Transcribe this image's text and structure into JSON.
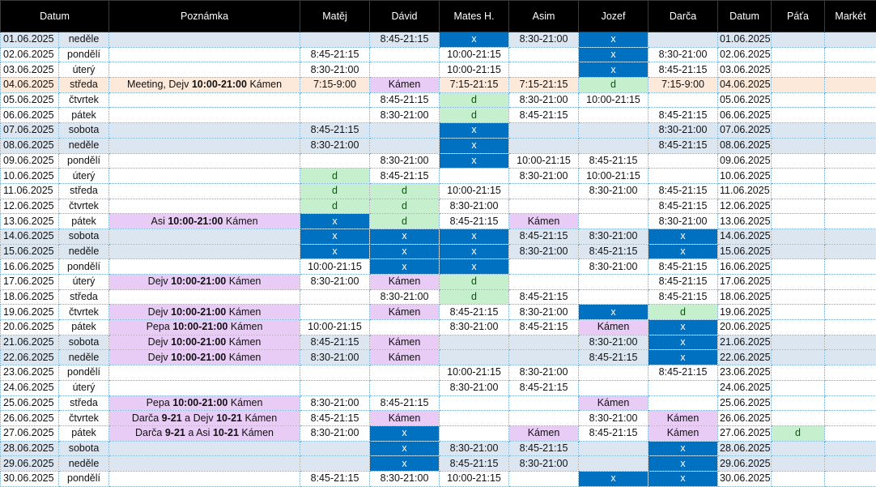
{
  "headers": [
    "Datum",
    "Poznámka",
    "Matěj",
    "Dávid",
    "Mates H.",
    "Asim",
    "Jozef",
    "Darča",
    "Datum",
    "Páťa",
    "Markét"
  ],
  "rows": [
    {
      "date": "01.06.2025",
      "day": "neděle",
      "weekend": true,
      "note": [],
      "noteClass": "",
      "cells": [
        {
          "v": ""
        },
        {
          "v": "8:45-21:15"
        },
        {
          "v": "x",
          "c": "x"
        },
        {
          "v": "8:30-21:00"
        },
        {
          "v": "x",
          "c": "x"
        },
        {
          "v": ""
        },
        {
          "v": "01.06.2025"
        },
        {
          "v": ""
        },
        {
          "v": ""
        }
      ]
    },
    {
      "date": "02.06.2025",
      "day": "pondělí",
      "note": [],
      "noteClass": "",
      "cells": [
        {
          "v": "8:45-21:15"
        },
        {
          "v": ""
        },
        {
          "v": "10:00-21:15"
        },
        {
          "v": ""
        },
        {
          "v": "x",
          "c": "x"
        },
        {
          "v": "8:30-21:00"
        },
        {
          "v": "02.06.2025"
        },
        {
          "v": ""
        },
        {
          "v": ""
        }
      ]
    },
    {
      "date": "03.06.2025",
      "day": "úterý",
      "note": [],
      "noteClass": "",
      "cells": [
        {
          "v": "8:30-21:00"
        },
        {
          "v": ""
        },
        {
          "v": "10:00-21:15"
        },
        {
          "v": ""
        },
        {
          "v": "x",
          "c": "x"
        },
        {
          "v": "8:45-21:15"
        },
        {
          "v": "03.06.2025"
        },
        {
          "v": ""
        },
        {
          "v": ""
        }
      ]
    },
    {
      "date": "04.06.2025",
      "day": "středa",
      "meeting": true,
      "note": [
        {
          "t": "Meeting, Dejv "
        },
        {
          "t": "10:00-21:00",
          "b": true
        },
        {
          "t": " Kámen"
        }
      ],
      "noteClass": "",
      "cells": [
        {
          "v": "7:15-9:00"
        },
        {
          "v": "Kámen",
          "c": "k"
        },
        {
          "v": "7:15-21:15"
        },
        {
          "v": "7:15-21:15"
        },
        {
          "v": "d",
          "c": "d"
        },
        {
          "v": "7:15-9:00"
        },
        {
          "v": "04.06.2025"
        },
        {
          "v": ""
        },
        {
          "v": ""
        }
      ]
    },
    {
      "date": "05.06.2025",
      "day": "čtvrtek",
      "note": [],
      "noteClass": "",
      "cells": [
        {
          "v": ""
        },
        {
          "v": "8:45-21:15"
        },
        {
          "v": "d",
          "c": "d"
        },
        {
          "v": "8:30-21:00"
        },
        {
          "v": "10:00-21:15"
        },
        {
          "v": ""
        },
        {
          "v": "05.06.2025"
        },
        {
          "v": ""
        },
        {
          "v": ""
        }
      ]
    },
    {
      "date": "06.06.2025",
      "day": "pátek",
      "note": [],
      "noteClass": "",
      "cells": [
        {
          "v": ""
        },
        {
          "v": "8:30-21:00"
        },
        {
          "v": "d",
          "c": "d"
        },
        {
          "v": "8:45-21:15"
        },
        {
          "v": ""
        },
        {
          "v": "8:45-21:15"
        },
        {
          "v": "06.06.2025"
        },
        {
          "v": ""
        },
        {
          "v": ""
        }
      ]
    },
    {
      "date": "07.06.2025",
      "day": "sobota",
      "weekend": true,
      "note": [],
      "noteClass": "",
      "cells": [
        {
          "v": "8:45-21:15"
        },
        {
          "v": ""
        },
        {
          "v": "x",
          "c": "x"
        },
        {
          "v": ""
        },
        {
          "v": ""
        },
        {
          "v": "8:30-21:00"
        },
        {
          "v": "07.06.2025"
        },
        {
          "v": ""
        },
        {
          "v": ""
        }
      ]
    },
    {
      "date": "08.06.2025",
      "day": "neděle",
      "weekend": true,
      "note": [],
      "noteClass": "",
      "cells": [
        {
          "v": "8:30-21:00"
        },
        {
          "v": ""
        },
        {
          "v": "x",
          "c": "x"
        },
        {
          "v": ""
        },
        {
          "v": ""
        },
        {
          "v": "8:45-21:15"
        },
        {
          "v": "08.06.2025"
        },
        {
          "v": ""
        },
        {
          "v": ""
        }
      ]
    },
    {
      "date": "09.06.2025",
      "day": "pondělí",
      "note": [],
      "noteClass": "",
      "cells": [
        {
          "v": ""
        },
        {
          "v": "8:30-21:00"
        },
        {
          "v": "x",
          "c": "x"
        },
        {
          "v": "10:00-21:15"
        },
        {
          "v": "8:45-21:15"
        },
        {
          "v": ""
        },
        {
          "v": "09.06.2025"
        },
        {
          "v": ""
        },
        {
          "v": ""
        }
      ]
    },
    {
      "date": "10.06.2025",
      "day": "úterý",
      "note": [],
      "noteClass": "",
      "cells": [
        {
          "v": "d",
          "c": "d"
        },
        {
          "v": "8:45-21:15"
        },
        {
          "v": ""
        },
        {
          "v": "8:30-21:00"
        },
        {
          "v": "10:00-21:15"
        },
        {
          "v": ""
        },
        {
          "v": "10.06.2025"
        },
        {
          "v": ""
        },
        {
          "v": ""
        }
      ]
    },
    {
      "date": "11.06.2025",
      "day": "středa",
      "note": [],
      "noteClass": "",
      "cells": [
        {
          "v": "d",
          "c": "d"
        },
        {
          "v": "d",
          "c": "d"
        },
        {
          "v": "10:00-21:15"
        },
        {
          "v": ""
        },
        {
          "v": "8:30-21:00"
        },
        {
          "v": "8:45-21:15"
        },
        {
          "v": "11.06.2025"
        },
        {
          "v": ""
        },
        {
          "v": ""
        }
      ]
    },
    {
      "date": "12.06.2025",
      "day": "čtvrtek",
      "note": [],
      "noteClass": "",
      "cells": [
        {
          "v": "d",
          "c": "d"
        },
        {
          "v": "d",
          "c": "d"
        },
        {
          "v": "8:30-21:00"
        },
        {
          "v": ""
        },
        {
          "v": ""
        },
        {
          "v": "8:45-21:15"
        },
        {
          "v": "12.06.2025"
        },
        {
          "v": ""
        },
        {
          "v": ""
        }
      ]
    },
    {
      "date": "13.06.2025",
      "day": "pátek",
      "note": [
        {
          "t": "Asi "
        },
        {
          "t": "10:00-21:00",
          "b": true
        },
        {
          "t": " Kámen"
        }
      ],
      "noteClass": "k",
      "cells": [
        {
          "v": "x",
          "c": "x"
        },
        {
          "v": "d",
          "c": "d"
        },
        {
          "v": "8:45-21:15"
        },
        {
          "v": "Kámen",
          "c": "k"
        },
        {
          "v": ""
        },
        {
          "v": "8:30-21:00"
        },
        {
          "v": "13.06.2025"
        },
        {
          "v": ""
        },
        {
          "v": ""
        }
      ]
    },
    {
      "date": "14.06.2025",
      "day": "sobota",
      "weekend": true,
      "note": [],
      "noteClass": "",
      "cells": [
        {
          "v": "x",
          "c": "x"
        },
        {
          "v": "x",
          "c": "x"
        },
        {
          "v": "x",
          "c": "x"
        },
        {
          "v": "8:45-21:15"
        },
        {
          "v": "8:30-21:00"
        },
        {
          "v": "x",
          "c": "x"
        },
        {
          "v": "14.06.2025"
        },
        {
          "v": ""
        },
        {
          "v": ""
        }
      ]
    },
    {
      "date": "15.06.2025",
      "day": "neděle",
      "weekend": true,
      "note": [],
      "noteClass": "",
      "cells": [
        {
          "v": "x",
          "c": "x"
        },
        {
          "v": "x",
          "c": "x"
        },
        {
          "v": "x",
          "c": "x"
        },
        {
          "v": "8:30-21:00"
        },
        {
          "v": "8:45-21:15"
        },
        {
          "v": "x",
          "c": "x"
        },
        {
          "v": "15.06.2025"
        },
        {
          "v": ""
        },
        {
          "v": ""
        }
      ]
    },
    {
      "date": "16.06.2025",
      "day": "pondělí",
      "note": [],
      "noteClass": "",
      "cells": [
        {
          "v": "10:00-21:15"
        },
        {
          "v": "x",
          "c": "x"
        },
        {
          "v": "x",
          "c": "x"
        },
        {
          "v": ""
        },
        {
          "v": "8:30-21:00"
        },
        {
          "v": "8:45-21:15"
        },
        {
          "v": "16.06.2025"
        },
        {
          "v": ""
        },
        {
          "v": ""
        }
      ]
    },
    {
      "date": "17.06.2025",
      "day": "úterý",
      "note": [
        {
          "t": "Dejv "
        },
        {
          "t": "10:00-21:00",
          "b": true
        },
        {
          "t": " Kámen"
        }
      ],
      "noteClass": "k",
      "cells": [
        {
          "v": "8:30-21:00"
        },
        {
          "v": "Kámen",
          "c": "k"
        },
        {
          "v": "d",
          "c": "d"
        },
        {
          "v": ""
        },
        {
          "v": ""
        },
        {
          "v": "8:45-21:15"
        },
        {
          "v": "17.06.2025"
        },
        {
          "v": ""
        },
        {
          "v": ""
        }
      ]
    },
    {
      "date": "18.06.2025",
      "day": "středa",
      "note": [],
      "noteClass": "",
      "cells": [
        {
          "v": ""
        },
        {
          "v": "8:30-21:00"
        },
        {
          "v": "d",
          "c": "d"
        },
        {
          "v": "8:45-21:15"
        },
        {
          "v": ""
        },
        {
          "v": "8:45-21:15"
        },
        {
          "v": "18.06.2025"
        },
        {
          "v": ""
        },
        {
          "v": ""
        }
      ]
    },
    {
      "date": "19.06.2025",
      "day": "čtvrtek",
      "note": [
        {
          "t": "Dejv "
        },
        {
          "t": "10:00-21:00",
          "b": true
        },
        {
          "t": " Kámen"
        }
      ],
      "noteClass": "k",
      "cells": [
        {
          "v": ""
        },
        {
          "v": "Kámen",
          "c": "k"
        },
        {
          "v": "8:45-21:15"
        },
        {
          "v": "8:30-21:00"
        },
        {
          "v": "x",
          "c": "x"
        },
        {
          "v": "d",
          "c": "d"
        },
        {
          "v": "19.06.2025"
        },
        {
          "v": ""
        },
        {
          "v": ""
        }
      ]
    },
    {
      "date": "20.06.2025",
      "day": "pátek",
      "note": [
        {
          "t": "Pepa "
        },
        {
          "t": "10:00-21:00",
          "b": true
        },
        {
          "t": " Kámen"
        }
      ],
      "noteClass": "k",
      "cells": [
        {
          "v": "10:00-21:15"
        },
        {
          "v": ""
        },
        {
          "v": "8:30-21:00"
        },
        {
          "v": "8:45-21:15"
        },
        {
          "v": "Kámen",
          "c": "k"
        },
        {
          "v": "x",
          "c": "x"
        },
        {
          "v": "20.06.2025"
        },
        {
          "v": ""
        },
        {
          "v": ""
        }
      ]
    },
    {
      "date": "21.06.2025",
      "day": "sobota",
      "weekend": true,
      "note": [
        {
          "t": "Dejv "
        },
        {
          "t": "10:00-21:00",
          "b": true
        },
        {
          "t": " Kámen"
        }
      ],
      "noteClass": "k",
      "cells": [
        {
          "v": "8:45-21:15"
        },
        {
          "v": "Kámen",
          "c": "k"
        },
        {
          "v": ""
        },
        {
          "v": ""
        },
        {
          "v": "8:30-21:00"
        },
        {
          "v": "x",
          "c": "x"
        },
        {
          "v": "21.06.2025"
        },
        {
          "v": ""
        },
        {
          "v": ""
        }
      ]
    },
    {
      "date": "22.06.2025",
      "day": "neděle",
      "weekend": true,
      "note": [
        {
          "t": "Dejv "
        },
        {
          "t": "10:00-21:00",
          "b": true
        },
        {
          "t": " Kámen"
        }
      ],
      "noteClass": "k",
      "cells": [
        {
          "v": "8:30-21:00"
        },
        {
          "v": "Kámen",
          "c": "k"
        },
        {
          "v": ""
        },
        {
          "v": ""
        },
        {
          "v": "8:45-21:15"
        },
        {
          "v": "x",
          "c": "x"
        },
        {
          "v": "22.06.2025"
        },
        {
          "v": ""
        },
        {
          "v": ""
        }
      ]
    },
    {
      "date": "23.06.2025",
      "day": "pondělí",
      "note": [],
      "noteClass": "",
      "cells": [
        {
          "v": ""
        },
        {
          "v": ""
        },
        {
          "v": "10:00-21:15"
        },
        {
          "v": "8:30-21:00"
        },
        {
          "v": ""
        },
        {
          "v": "8:45-21:15"
        },
        {
          "v": "23.06.2025"
        },
        {
          "v": ""
        },
        {
          "v": ""
        }
      ]
    },
    {
      "date": "24.06.2025",
      "day": "úterý",
      "note": [],
      "noteClass": "",
      "cells": [
        {
          "v": ""
        },
        {
          "v": ""
        },
        {
          "v": "8:30-21:00"
        },
        {
          "v": "8:45-21:15"
        },
        {
          "v": ""
        },
        {
          "v": ""
        },
        {
          "v": "24.06.2025"
        },
        {
          "v": ""
        },
        {
          "v": ""
        }
      ]
    },
    {
      "date": "25.06.2025",
      "day": "středa",
      "note": [
        {
          "t": "Pepa "
        },
        {
          "t": "10:00-21:00",
          "b": true
        },
        {
          "t": " Kámen"
        }
      ],
      "noteClass": "k",
      "cells": [
        {
          "v": "8:30-21:00"
        },
        {
          "v": "8:45-21:15"
        },
        {
          "v": ""
        },
        {
          "v": ""
        },
        {
          "v": "Kámen",
          "c": "k"
        },
        {
          "v": ""
        },
        {
          "v": "25.06.2025"
        },
        {
          "v": ""
        },
        {
          "v": ""
        }
      ]
    },
    {
      "date": "26.06.2025",
      "day": "čtvrtek",
      "note": [
        {
          "t": "Darča "
        },
        {
          "t": "9-21",
          "b": true
        },
        {
          "t": " a Dejv "
        },
        {
          "t": "10-21",
          "b": true
        },
        {
          "t": " Kámen"
        }
      ],
      "noteClass": "k",
      "cells": [
        {
          "v": "8:45-21:15"
        },
        {
          "v": "Kámen",
          "c": "k"
        },
        {
          "v": ""
        },
        {
          "v": ""
        },
        {
          "v": "8:30-21:00"
        },
        {
          "v": "Kámen",
          "c": "k"
        },
        {
          "v": "26.06.2025"
        },
        {
          "v": ""
        },
        {
          "v": ""
        }
      ]
    },
    {
      "date": "27.06.2025",
      "day": "pátek",
      "note": [
        {
          "t": "Darča "
        },
        {
          "t": "9-21",
          "b": true
        },
        {
          "t": " a Asi "
        },
        {
          "t": "10-21",
          "b": true
        },
        {
          "t": " Kámen"
        }
      ],
      "noteClass": "k",
      "cells": [
        {
          "v": "8:30-21:00"
        },
        {
          "v": "x",
          "c": "x"
        },
        {
          "v": ""
        },
        {
          "v": "Kámen",
          "c": "k"
        },
        {
          "v": "8:45-21:15"
        },
        {
          "v": "Kámen",
          "c": "k"
        },
        {
          "v": "27.06.2025"
        },
        {
          "v": "d",
          "c": "d"
        },
        {
          "v": ""
        }
      ]
    },
    {
      "date": "28.06.2025",
      "day": "sobota",
      "weekend": true,
      "note": [],
      "noteClass": "",
      "cells": [
        {
          "v": ""
        },
        {
          "v": "x",
          "c": "x"
        },
        {
          "v": "8:30-21:00"
        },
        {
          "v": "8:45-21:15"
        },
        {
          "v": ""
        },
        {
          "v": "x",
          "c": "x"
        },
        {
          "v": "28.06.2025"
        },
        {
          "v": ""
        },
        {
          "v": ""
        }
      ]
    },
    {
      "date": "29.06.2025",
      "day": "neděle",
      "weekend": true,
      "note": [],
      "noteClass": "",
      "cells": [
        {
          "v": ""
        },
        {
          "v": "x",
          "c": "x"
        },
        {
          "v": "8:45-21:15"
        },
        {
          "v": "8:30-21:00"
        },
        {
          "v": ""
        },
        {
          "v": "x",
          "c": "x"
        },
        {
          "v": "29.06.2025"
        },
        {
          "v": ""
        },
        {
          "v": ""
        }
      ]
    },
    {
      "date": "30.06.2025",
      "day": "pondělí",
      "note": [],
      "noteClass": "",
      "cells": [
        {
          "v": "8:45-21:15"
        },
        {
          "v": "8:30-21:00"
        },
        {
          "v": "10:00-21:15"
        },
        {
          "v": ""
        },
        {
          "v": "x",
          "c": "x"
        },
        {
          "v": "x",
          "c": "x"
        },
        {
          "v": "30.06.2025"
        },
        {
          "v": ""
        },
        {
          "v": ""
        }
      ]
    }
  ]
}
